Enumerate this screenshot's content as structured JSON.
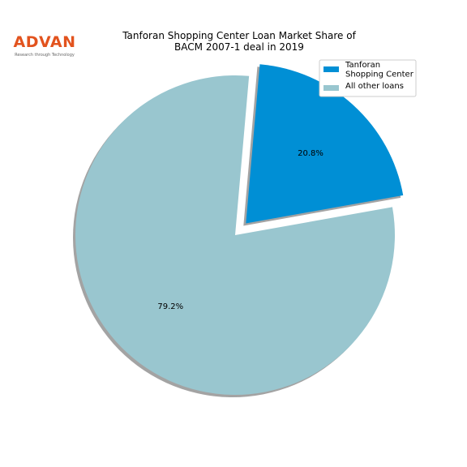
{
  "logo": {
    "name": "ADVAN",
    "tagline": "Research through Technology"
  },
  "chart_data": {
    "type": "pie",
    "title": "Tanforan Shopping Center Loan Market Share of\nBACM 2007-1 deal in 2019",
    "categories": [
      "Tanforan\nShopping Center",
      "All other loans"
    ],
    "values": [
      20.8,
      79.2
    ],
    "value_labels": [
      "20.8%",
      "79.2%"
    ],
    "colors": [
      "#008fd5",
      "#99c6cf"
    ],
    "explode": [
      0.1,
      0
    ],
    "shadow": true,
    "legend": "upper right"
  }
}
